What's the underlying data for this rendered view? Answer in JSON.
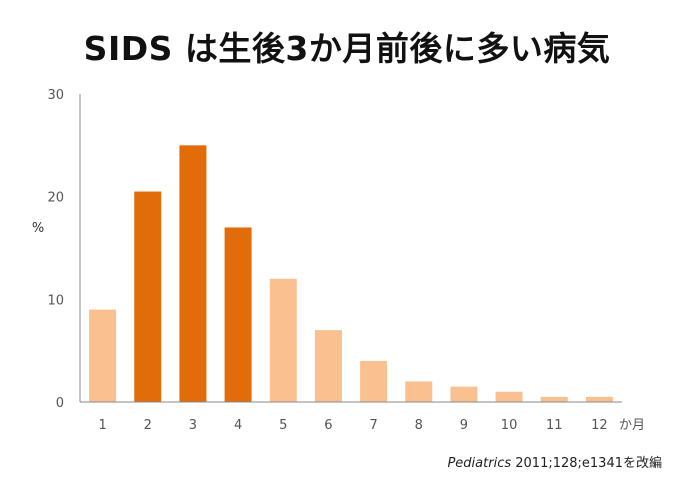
{
  "colors": {
    "highlight": "#E36C0A",
    "normal": "#FAC090",
    "axis": "#888888"
  },
  "chart_data": {
    "type": "bar",
    "title": "SIDS は生後3か月前後に多い病気",
    "ylabel": "%",
    "xunit": "か月",
    "ylim": [
      0,
      30
    ],
    "yticks": [
      0,
      10,
      20,
      30
    ],
    "grid": false,
    "categories": [
      "1",
      "2",
      "3",
      "4",
      "5",
      "6",
      "7",
      "8",
      "9",
      "10",
      "11",
      "12"
    ],
    "values": [
      9,
      20.5,
      25,
      17,
      12,
      7,
      4,
      2,
      1.5,
      1,
      0.5,
      0.5
    ],
    "highlighted": [
      false,
      true,
      true,
      true,
      false,
      false,
      false,
      false,
      false,
      false,
      false,
      false
    ]
  },
  "source": {
    "journal": "Pediatrics",
    "citation": " 2011;128;e1341を改編"
  }
}
